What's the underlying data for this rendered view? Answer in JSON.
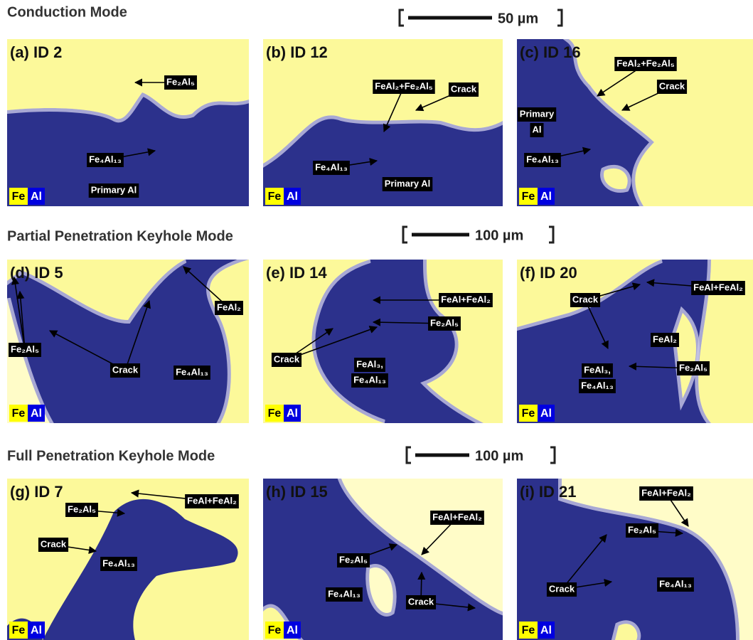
{
  "rows": [
    {
      "title": "Conduction Mode",
      "scale": "50 µm",
      "panels": [
        {
          "id": "(a) ID 2",
          "labels": [
            {
              "lines": [
                "Fe₂Al₅"
              ]
            },
            {
              "lines": [
                "Fe₄Al₁₃"
              ]
            },
            {
              "lines": [
                "Primary Al"
              ]
            }
          ]
        },
        {
          "id": "(b) ID 12",
          "labels": [
            {
              "lines": [
                "FeAl₂+Fe₂Al₅"
              ]
            },
            {
              "lines": [
                "Crack"
              ]
            },
            {
              "lines": [
                "Fe₄Al₁₃"
              ]
            },
            {
              "lines": [
                "Primary Al"
              ]
            }
          ]
        },
        {
          "id": "(c) ID 16",
          "labels": [
            {
              "lines": [
                "FeAl₂+Fe₂Al₅"
              ]
            },
            {
              "lines": [
                "Crack"
              ]
            },
            {
              "lines": [
                "Primary",
                "Al"
              ]
            },
            {
              "lines": [
                "Fe₄Al₁₃"
              ]
            }
          ]
        }
      ]
    },
    {
      "title": "Partial Penetration Keyhole Mode",
      "scale": "100 µm",
      "panels": [
        {
          "id": "(d) ID 5",
          "labels": [
            {
              "lines": [
                "FeAl₂"
              ]
            },
            {
              "lines": [
                "Fe₂Al₅"
              ]
            },
            {
              "lines": [
                "Crack"
              ]
            },
            {
              "lines": [
                "Fe₄Al₁₃"
              ]
            }
          ]
        },
        {
          "id": "(e) ID 14",
          "labels": [
            {
              "lines": [
                "FeAl+FeAl₂"
              ]
            },
            {
              "lines": [
                "Fe₂Al₅"
              ]
            },
            {
              "lines": [
                "Crack"
              ]
            },
            {
              "lines": [
                "FeAl₃,",
                "Fe₄Al₁₃"
              ]
            }
          ]
        },
        {
          "id": "(f) ID 20",
          "labels": [
            {
              "lines": [
                "FeAl+FeAl₂"
              ]
            },
            {
              "lines": [
                "Crack"
              ]
            },
            {
              "lines": [
                "FeAl₂"
              ]
            },
            {
              "lines": [
                "Fe₂Al₅"
              ]
            },
            {
              "lines": [
                "FeAl₃,",
                "Fe₄Al₁₃"
              ]
            }
          ]
        }
      ]
    },
    {
      "title": "Full Penetration Keyhole Mode",
      "scale": "100 µm",
      "panels": [
        {
          "id": "(g) ID 7",
          "labels": [
            {
              "lines": [
                "FeAl+FeAl₂"
              ]
            },
            {
              "lines": [
                "Fe₂Al₅"
              ]
            },
            {
              "lines": [
                "Crack"
              ]
            },
            {
              "lines": [
                "Fe₄Al₁₃"
              ]
            }
          ]
        },
        {
          "id": "(h) ID 15",
          "labels": [
            {
              "lines": [
                "FeAl+FeAl₂"
              ]
            },
            {
              "lines": [
                "Fe₂Al₅"
              ]
            },
            {
              "lines": [
                "Fe₄Al₁₃"
              ]
            },
            {
              "lines": [
                "Crack"
              ]
            }
          ]
        },
        {
          "id": "(i) ID 21",
          "labels": [
            {
              "lines": [
                "FeAl+FeAl₂"
              ]
            },
            {
              "lines": [
                "Fe₂Al₅"
              ]
            },
            {
              "lines": [
                "Crack"
              ]
            },
            {
              "lines": [
                "Fe₄Al₁₃"
              ]
            }
          ]
        }
      ]
    }
  ],
  "legend": [
    "Fe",
    "Al"
  ]
}
